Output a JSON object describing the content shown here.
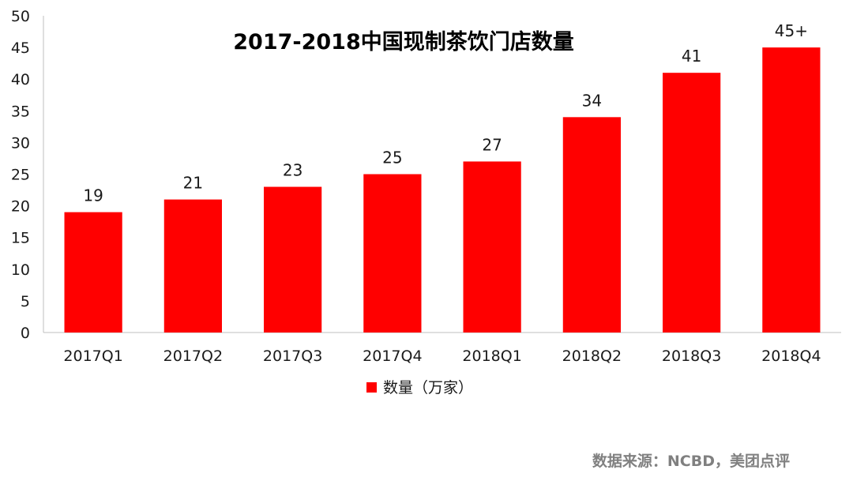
{
  "chart_data": {
    "type": "bar",
    "title": "2017-2018中国现制茶饮门店数量",
    "categories": [
      "2017Q1",
      "2017Q2",
      "2017Q3",
      "2017Q4",
      "2018Q1",
      "2018Q2",
      "2018Q3",
      "2018Q4"
    ],
    "series": [
      {
        "name": "数量（万家）",
        "values": [
          19,
          21,
          23,
          25,
          27,
          34,
          41,
          45
        ],
        "labels": [
          "19",
          "21",
          "23",
          "25",
          "27",
          "34",
          "41",
          "45+"
        ],
        "color": "#ff0000"
      }
    ],
    "ylim": [
      0,
      50
    ],
    "yticks": [
      0,
      5,
      10,
      15,
      20,
      25,
      30,
      35,
      40,
      45,
      50
    ],
    "grid": false,
    "legend_position": "bottom"
  },
  "source": "数据来源：NCBD，美团点评"
}
